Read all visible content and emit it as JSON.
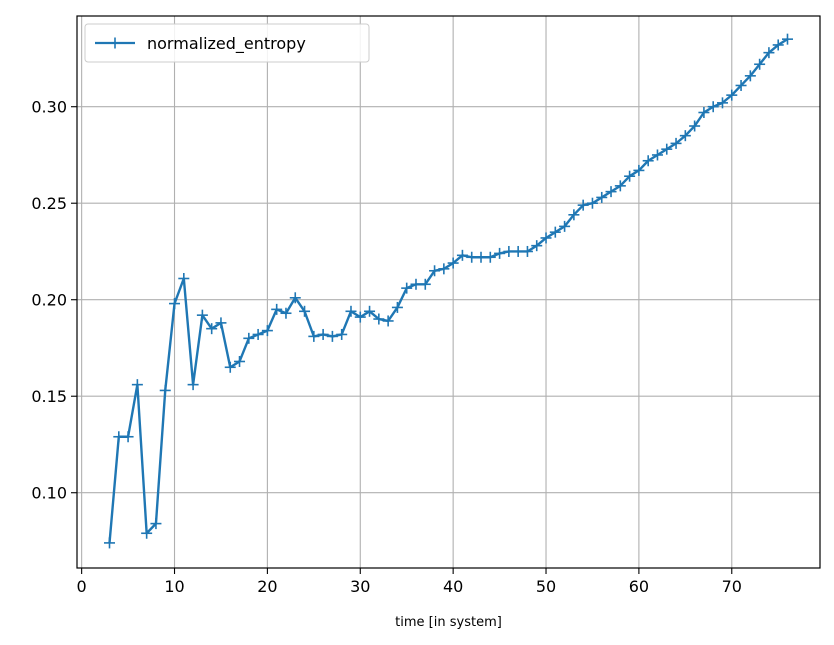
{
  "chart_data": {
    "type": "line",
    "title": "",
    "xlabel": "time [in system]",
    "ylabel": "",
    "xlim": [
      -0.5,
      79.5
    ],
    "ylim": [
      0.061,
      0.347
    ],
    "xticks": [
      0,
      10,
      20,
      30,
      40,
      50,
      60,
      70
    ],
    "xtick_labels": [
      "0",
      "10",
      "20",
      "30",
      "40",
      "50",
      "60",
      "70"
    ],
    "yticks": [
      0.1,
      0.15,
      0.2,
      0.25,
      0.3
    ],
    "ytick_labels": [
      "0.10",
      "0.15",
      "0.20",
      "0.25",
      "0.30"
    ],
    "grid": true,
    "legend_position": "top-left",
    "color": "#1f77b4",
    "marker": "plus",
    "series": [
      {
        "name": "normalized_entropy",
        "x": [
          3,
          4,
          5,
          6,
          7,
          8,
          9,
          10,
          11,
          12,
          13,
          14,
          15,
          16,
          17,
          18,
          19,
          20,
          21,
          22,
          23,
          24,
          25,
          26,
          27,
          28,
          29,
          30,
          31,
          32,
          33,
          34,
          35,
          36,
          37,
          38,
          39,
          40,
          41,
          42,
          43,
          44,
          45,
          46,
          47,
          48,
          49,
          50,
          51,
          52,
          53,
          54,
          55,
          56,
          57,
          58,
          59,
          60,
          61,
          62,
          63,
          64,
          65,
          66,
          67,
          68,
          69,
          70,
          71,
          72,
          73,
          74,
          75,
          76
        ],
        "y": [
          0.074,
          0.129,
          0.129,
          0.156,
          0.079,
          0.084,
          0.153,
          0.198,
          0.211,
          0.156,
          0.192,
          0.185,
          0.188,
          0.165,
          0.168,
          0.18,
          0.182,
          0.184,
          0.195,
          0.193,
          0.201,
          0.194,
          0.181,
          0.182,
          0.181,
          0.182,
          0.194,
          0.191,
          0.194,
          0.19,
          0.189,
          0.196,
          0.206,
          0.208,
          0.208,
          0.215,
          0.216,
          0.219,
          0.223,
          0.222,
          0.222,
          0.222,
          0.224,
          0.225,
          0.225,
          0.225,
          0.228,
          0.232,
          0.235,
          0.238,
          0.244,
          0.249,
          0.25,
          0.253,
          0.256,
          0.259,
          0.264,
          0.267,
          0.272,
          0.275,
          0.278,
          0.281,
          0.285,
          0.29,
          0.297,
          0.3,
          0.302,
          0.306,
          0.311,
          0.316,
          0.322,
          0.328,
          0.332,
          0.335
        ]
      }
    ]
  }
}
